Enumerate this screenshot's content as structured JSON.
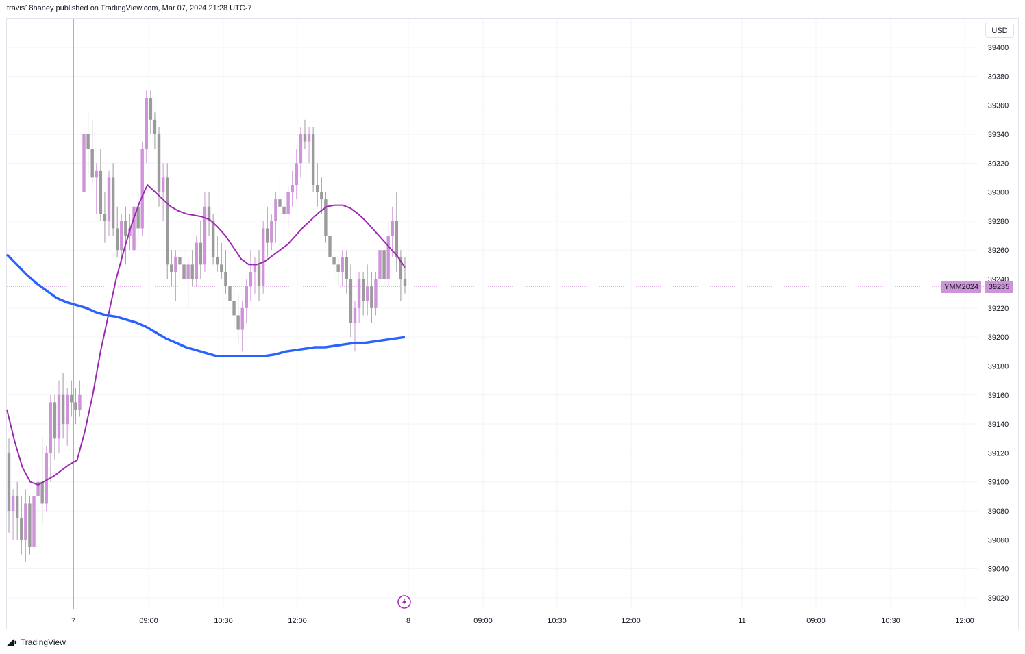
{
  "header": {
    "published": "travis18haney published on TradingView.com, Mar 07, 2024 21:28 UTC-7"
  },
  "currency_button": "USD",
  "price_tag": {
    "symbol": "YMM2024",
    "price": "39235"
  },
  "footer": {
    "brand": "TradingView",
    "logo_icon": "tradingview-logo-icon"
  },
  "icons": {
    "flash": "lightning-icon"
  },
  "colors": {
    "up_candle": "#ce93d8",
    "down_candle": "#9b9b9b",
    "ma_fast": "#9c27b0",
    "ma_slow": "#2962ff",
    "session_line": "#2962ff",
    "price_line": "#ce93d8"
  },
  "chart_data": {
    "type": "candlestick",
    "y_axis": {
      "range": [
        39010,
        39410
      ],
      "ticks": [
        39020,
        39040,
        39060,
        39080,
        39100,
        39120,
        39140,
        39160,
        39180,
        39200,
        39220,
        39240,
        39260,
        39280,
        39300,
        39320,
        39340,
        39360,
        39380,
        39400
      ]
    },
    "x_axis": {
      "ticks": [
        "7",
        "09:00",
        "10:30",
        "12:00",
        "8",
        "09:00",
        "10:30",
        "12:00",
        "11",
        "09:00",
        "10:30",
        "12:00"
      ]
    },
    "grid": true,
    "last_price": 39235,
    "candles": [
      [
        39120,
        39130,
        39065,
        39080
      ],
      [
        39080,
        39095,
        39060,
        39090
      ],
      [
        39090,
        39100,
        39060,
        39075
      ],
      [
        39075,
        39090,
        39050,
        39060
      ],
      [
        39060,
        39095,
        39045,
        39085
      ],
      [
        39085,
        39090,
        39050,
        39055
      ],
      [
        39055,
        39100,
        39050,
        39090
      ],
      [
        39090,
        39110,
        39080,
        39100
      ],
      [
        39100,
        39130,
        39070,
        39085
      ],
      [
        39085,
        39125,
        39080,
        39120
      ],
      [
        39120,
        39160,
        39100,
        39155
      ],
      [
        39155,
        39160,
        39115,
        39130
      ],
      [
        39130,
        39170,
        39120,
        39160
      ],
      [
        39160,
        39175,
        39130,
        39140
      ],
      [
        39140,
        39165,
        39125,
        39160
      ],
      [
        39160,
        39170,
        39145,
        39155
      ],
      [
        39155,
        39165,
        39140,
        39150
      ],
      [
        39150,
        39170,
        39145,
        39160
      ],
      [
        39300,
        39355,
        39300,
        39340
      ],
      [
        39340,
        39355,
        39310,
        39330
      ],
      [
        39330,
        39350,
        39305,
        39310
      ],
      [
        39310,
        39320,
        39285,
        39315
      ],
      [
        39315,
        39330,
        39280,
        39285
      ],
      [
        39285,
        39300,
        39265,
        39280
      ],
      [
        39280,
        39315,
        39270,
        39310
      ],
      [
        39310,
        39320,
        39270,
        39275
      ],
      [
        39275,
        39290,
        39255,
        39260
      ],
      [
        39260,
        39285,
        39250,
        39280
      ],
      [
        39280,
        39290,
        39250,
        39270
      ],
      [
        39270,
        39285,
        39260,
        39275
      ],
      [
        39260,
        39300,
        39255,
        39290
      ],
      [
        39290,
        39300,
        39270,
        39275
      ],
      [
        39275,
        39335,
        39270,
        39330
      ],
      [
        39330,
        39370,
        39320,
        39365
      ],
      [
        39365,
        39370,
        39340,
        39350
      ],
      [
        39350,
        39355,
        39330,
        39340
      ],
      [
        39340,
        39345,
        39290,
        39300
      ],
      [
        39300,
        39320,
        39280,
        39310
      ],
      [
        39310,
        39320,
        39240,
        39250
      ],
      [
        39250,
        39260,
        39235,
        39245
      ],
      [
        39245,
        39260,
        39225,
        39255
      ],
      [
        39255,
        39260,
        39240,
        39250
      ],
      [
        39250,
        39260,
        39230,
        39240
      ],
      [
        39240,
        39255,
        39220,
        39250
      ],
      [
        39250,
        39260,
        39235,
        39240
      ],
      [
        39240,
        39270,
        39235,
        39265
      ],
      [
        39265,
        39280,
        39240,
        39250
      ],
      [
        39250,
        39300,
        39245,
        39290
      ],
      [
        39290,
        39300,
        39270,
        39280
      ],
      [
        39280,
        39285,
        39250,
        39255
      ],
      [
        39255,
        39270,
        39245,
        39250
      ],
      [
        39250,
        39265,
        39240,
        39245
      ],
      [
        39245,
        39260,
        39230,
        39235
      ],
      [
        39235,
        39250,
        39215,
        39225
      ],
      [
        39225,
        39240,
        39205,
        39215
      ],
      [
        39215,
        39230,
        39195,
        39205
      ],
      [
        39205,
        39225,
        39190,
        39220
      ],
      [
        39220,
        39240,
        39210,
        39235
      ],
      [
        39235,
        39260,
        39225,
        39245
      ],
      [
        39245,
        39255,
        39230,
        39250
      ],
      [
        39250,
        39260,
        39225,
        39235
      ],
      [
        39235,
        39280,
        39230,
        39275
      ],
      [
        39275,
        39290,
        39255,
        39265
      ],
      [
        39265,
        39285,
        39260,
        39280
      ],
      [
        39280,
        39300,
        39265,
        39295
      ],
      [
        39295,
        39310,
        39275,
        39290
      ],
      [
        39290,
        39300,
        39270,
        39285
      ],
      [
        39285,
        39305,
        39275,
        39300
      ],
      [
        39300,
        39315,
        39290,
        39305
      ],
      [
        39305,
        39330,
        39295,
        39320
      ],
      [
        39320,
        39345,
        39310,
        39340
      ],
      [
        39340,
        39350,
        39330,
        39335
      ],
      [
        39335,
        39345,
        39320,
        39340
      ],
      [
        39340,
        39345,
        39300,
        39305
      ],
      [
        39305,
        39320,
        39290,
        39300
      ],
      [
        39300,
        39310,
        39285,
        39295
      ],
      [
        39295,
        39300,
        39265,
        39270
      ],
      [
        39270,
        39275,
        39245,
        39255
      ],
      [
        39255,
        39260,
        39240,
        39250
      ],
      [
        39250,
        39255,
        39235,
        39245
      ],
      [
        39245,
        39260,
        39235,
        39255
      ],
      [
        39255,
        39260,
        39230,
        39240
      ],
      [
        39240,
        39250,
        39200,
        39210
      ],
      [
        39210,
        39225,
        39190,
        39220
      ],
      [
        39220,
        39245,
        39210,
        39240
      ],
      [
        39240,
        39245,
        39215,
        39225
      ],
      [
        39225,
        39250,
        39215,
        39235
      ],
      [
        39235,
        39245,
        39210,
        39220
      ],
      [
        39220,
        39245,
        39215,
        39240
      ],
      [
        39240,
        39265,
        39220,
        39260
      ],
      [
        39260,
        39265,
        39235,
        39240
      ],
      [
        39240,
        39280,
        39235,
        39270
      ],
      [
        39270,
        39290,
        39255,
        39280
      ],
      [
        39280,
        39300,
        39245,
        39255
      ],
      [
        39255,
        39260,
        39225,
        39240
      ],
      [
        39240,
        39255,
        39230,
        39235
      ]
    ],
    "series": [
      {
        "name": "",
        "values": [
          39150,
          39128,
          39110,
          39100,
          39098,
          39101,
          39104,
          39108,
          39112,
          39115,
          39135,
          39160,
          39190,
          39215,
          39240,
          39260,
          39278,
          39293,
          39305,
          39300,
          39295,
          39290,
          39287,
          39285,
          39284,
          39283,
          39281,
          39276,
          39270,
          39262,
          39254,
          39250,
          39250,
          39252,
          39256,
          39260,
          39264,
          39270,
          39276,
          39281,
          39286,
          39290,
          39291,
          39291,
          39289,
          39285,
          39280,
          39274,
          39268,
          39262,
          39256,
          39248
        ]
      },
      {
        "name": "",
        "values": [
          39257,
          39250,
          39243,
          39237,
          39232,
          39227,
          39224,
          39222,
          39220,
          39217,
          39215,
          39214,
          39212,
          39210,
          39207,
          39203,
          39199,
          39196,
          39193,
          39191,
          39189,
          39187,
          39187,
          39187,
          39187,
          39187,
          39187,
          39188,
          39190,
          39191,
          39192,
          39193,
          39193,
          39194,
          39195,
          39196,
          39196,
          39197,
          39198,
          39199,
          39200
        ]
      }
    ]
  }
}
